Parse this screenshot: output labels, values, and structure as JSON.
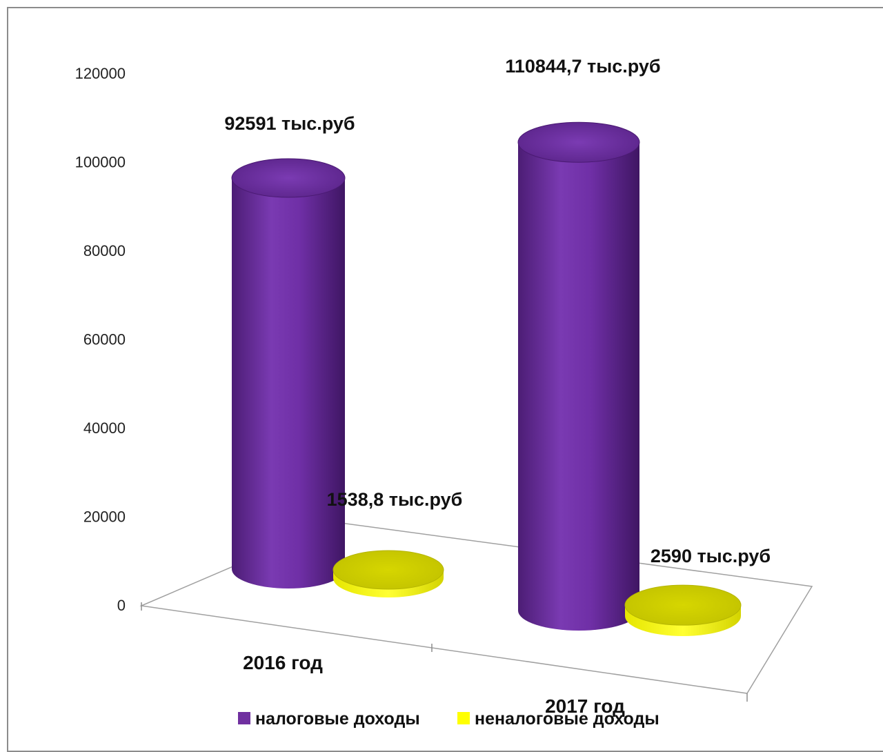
{
  "chart_data": {
    "type": "bar",
    "style": "3d-cylinder",
    "categories": [
      "2016 год",
      "2017 год"
    ],
    "series": [
      {
        "name": "налоговые доходы",
        "values": [
          92591,
          110844.7
        ],
        "labels": [
          "92591 тыс.руб",
          "110844,7 тыс.руб"
        ]
      },
      {
        "name": "неналоговые доходы",
        "values": [
          1538.8,
          2590
        ],
        "labels": [
          "1538,8 тыс.руб",
          "2590 тыс.руб"
        ]
      }
    ],
    "y_ticks": [
      "0",
      "20000",
      "40000",
      "60000",
      "80000",
      "100000",
      "120000"
    ],
    "ylim": [
      0,
      120000
    ],
    "title": "",
    "xlabel": "",
    "ylabel": "",
    "legend_position": "bottom",
    "grid": false,
    "colors": {
      "series_0": "#7030a0",
      "series_1": "#ffff00"
    }
  }
}
